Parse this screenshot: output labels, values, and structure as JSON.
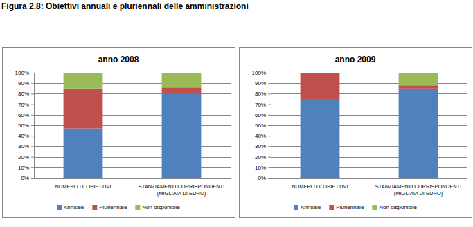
{
  "title": "Figura 2.8: Obiettivi annuali e pluriennali delle amministrazioni",
  "chart_data": [
    {
      "type": "bar",
      "title": "anno 2008",
      "stacked": true,
      "grid": true,
      "legend": "bottom",
      "categories": [
        "NUMERO DI OBIETTIVI",
        "STANZIAMENTI CORRISPONDENTI (MIGLIAIA DI EURO)"
      ],
      "ylim": [
        0,
        100
      ],
      "yticks": [
        {
          "value": 0,
          "label": "0%"
        },
        {
          "value": 10,
          "label": "10%"
        },
        {
          "value": 20,
          "label": "20%"
        },
        {
          "value": 30,
          "label": "30%"
        },
        {
          "value": 40,
          "label": "40%"
        },
        {
          "value": 50,
          "label": "50%"
        },
        {
          "value": 60,
          "label": "60%"
        },
        {
          "value": 70,
          "label": "70%"
        },
        {
          "value": 80,
          "label": "80%"
        },
        {
          "value": 90,
          "label": "90%"
        },
        {
          "value": 100,
          "label": "100%"
        }
      ],
      "series": [
        {
          "name": "Annuale",
          "color": "#4f81bd",
          "values": [
            47,
            80
          ]
        },
        {
          "name": "Pluriennale",
          "color": "#c0504d",
          "values": [
            38,
            6
          ]
        },
        {
          "name": "Non disponibile",
          "color": "#9bbb59",
          "values": [
            15,
            14
          ]
        }
      ]
    },
    {
      "type": "bar",
      "title": "anno 2009",
      "stacked": true,
      "grid": true,
      "legend": "bottom",
      "categories": [
        "NUMERO DI OBIETTIVI",
        "STANZIAMENTI CORRISPONDENTI (MIGLIAIA DI EURO)"
      ],
      "ylim": [
        0,
        100
      ],
      "yticks": [
        {
          "value": 0,
          "label": "0%"
        },
        {
          "value": 10,
          "label": "10%"
        },
        {
          "value": 20,
          "label": "20%"
        },
        {
          "value": 30,
          "label": "30%"
        },
        {
          "value": 40,
          "label": "40%"
        },
        {
          "value": 50,
          "label": "50%"
        },
        {
          "value": 60,
          "label": "60%"
        },
        {
          "value": 70,
          "label": "70%"
        },
        {
          "value": 80,
          "label": "80%"
        },
        {
          "value": 90,
          "label": "90%"
        },
        {
          "value": 100,
          "label": "100%"
        }
      ],
      "series": [
        {
          "name": "Annuale",
          "color": "#4f81bd",
          "values": [
            75,
            85
          ]
        },
        {
          "name": "Pluriennale",
          "color": "#c0504d",
          "values": [
            25,
            3
          ]
        },
        {
          "name": "Non disponibile",
          "color": "#9bbb59",
          "values": [
            0,
            12
          ]
        }
      ]
    }
  ]
}
